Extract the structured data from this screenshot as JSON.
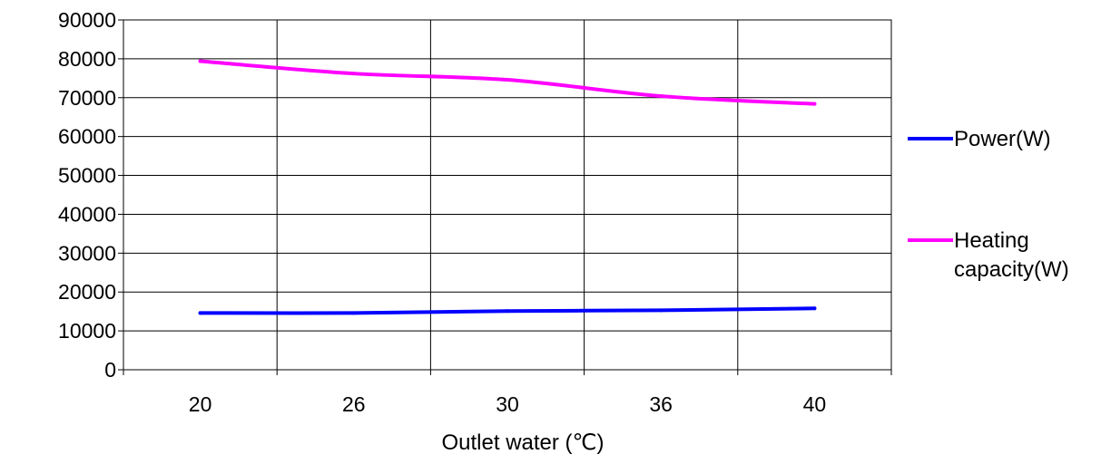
{
  "chart_data": {
    "type": "line",
    "categories": [
      "20",
      "26",
      "30",
      "36",
      "40"
    ],
    "series": [
      {
        "name": "Power(W)",
        "color": "#0000ff",
        "values": [
          14600,
          14600,
          15100,
          15300,
          15800
        ]
      },
      {
        "name": "Heating capacity(W)",
        "color": "#ff00ff",
        "values": [
          79400,
          76200,
          74600,
          70400,
          68400
        ]
      }
    ],
    "xlabel": "Outlet water (℃)",
    "ylabel": "",
    "ylim": [
      0,
      90000
    ],
    "yticks": [
      "0",
      "10000",
      "20000",
      "30000",
      "40000",
      "50000",
      "60000",
      "70000",
      "80000",
      "90000"
    ],
    "grid": true,
    "legend_position": "right",
    "legend_lines": [
      [
        "Power(W)"
      ],
      [
        "Heating",
        "capacity(W)"
      ]
    ]
  }
}
